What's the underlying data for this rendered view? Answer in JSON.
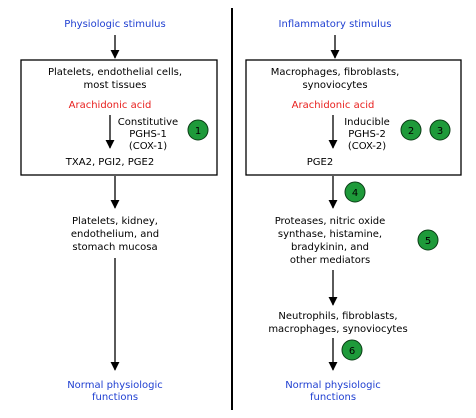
{
  "left": {
    "stimulus": "Physiologic stimulus",
    "box_line1": "Platelets, endothelial cells,",
    "box_line2": "most tissues",
    "acid": "Arachidonic acid",
    "enzyme_line1": "Constitutive",
    "enzyme_line2": "PGHS-1",
    "enzyme_line3": "(COX-1)",
    "badge": "1",
    "products": "TXA2, PGI2, PGE2",
    "targets_line1": "Platelets, kidney,",
    "targets_line2": "endothelium, and",
    "targets_line3": "stomach mucosa",
    "outcome_line1": "Normal physiologic",
    "outcome_line2": "functions"
  },
  "right": {
    "stimulus": "Inflammatory stimulus",
    "box_line1": "Macrophages, fibroblasts,",
    "box_line2": "synoviocytes",
    "acid": "Arachidonic acid",
    "enzyme_line1": "Inducible",
    "enzyme_line2": "PGHS-2",
    "enzyme_line3": "(COX-2)",
    "badge_a": "2",
    "badge_b": "3",
    "product": "PGE2",
    "badge_c": "4",
    "mediators_line1": "Proteases, nitric oxide",
    "mediators_line2": "synthase, histamine,",
    "mediators_line3": "bradykinin, and",
    "mediators_line4": "other mediators",
    "badge_d": "5",
    "cells_line1": "Neutrophils, fibroblasts,",
    "cells_line2": "macrophages, synoviocytes",
    "badge_e": "6",
    "outcome_line1": "Normal physiologic",
    "outcome_line2": "functions"
  },
  "colors": {
    "stimulus_text": "#1f3fd1",
    "acid_text": "#e8201e",
    "badge_fill": "#1e9a3a",
    "badge_stroke": "#0b3d16",
    "line": "#000000"
  }
}
